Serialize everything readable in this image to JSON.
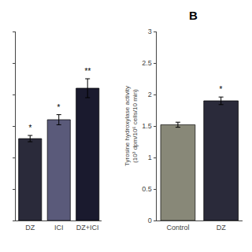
{
  "chart_data": [
    {
      "type": "bar",
      "categories": [
        "DZ",
        "ICI",
        "DZ+ICI"
      ],
      "values": [
        1.3,
        1.6,
        2.1
      ],
      "errors": [
        0.05,
        0.08,
        0.15
      ],
      "annotations": [
        "*",
        "*",
        "**"
      ],
      "colors": [
        "#2a2a3a",
        "#5a5a7a",
        "#1a1a2e"
      ],
      "ylim": [
        0,
        3
      ],
      "yticks": [
        0,
        0.5,
        1,
        1.5,
        2,
        2.5,
        3
      ],
      "tick_labels": "x",
      "grid": false
    },
    {
      "type": "bar",
      "title": "B",
      "categories": [
        "Control",
        "DZ"
      ],
      "values": [
        1.52,
        1.9
      ],
      "errors": [
        0.04,
        0.06
      ],
      "annotations": [
        null,
        "*"
      ],
      "colors": [
        "#888878",
        "#2a2a3a"
      ],
      "ylabel": "Tyrosine hydroxylase activity\n(10³ dpm/10⁶ cells/10 min)",
      "ylim": [
        0,
        3
      ],
      "yticks": [
        0,
        0.5,
        1,
        1.5,
        2,
        2.5,
        3
      ],
      "grid": false
    }
  ]
}
